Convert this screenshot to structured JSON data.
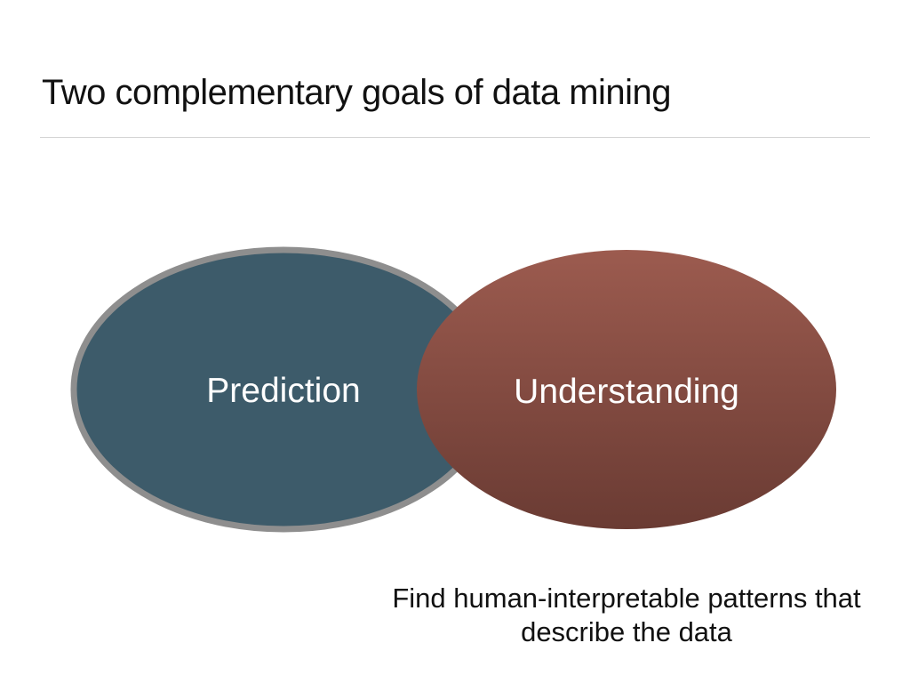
{
  "slide": {
    "title": "Two complementary goals of data mining"
  },
  "diagram": {
    "left_circle": {
      "label": "Prediction",
      "fill": "#3d5b6a",
      "border": "#8e8e8e"
    },
    "right_circle": {
      "label": "Understanding",
      "fill_top": "#9c5b4f",
      "fill_bottom": "#6a3b33"
    },
    "label_color": "#ffffff"
  },
  "caption": {
    "line1": "Find human-interpretable patterns that",
    "line2": "describe the data"
  }
}
